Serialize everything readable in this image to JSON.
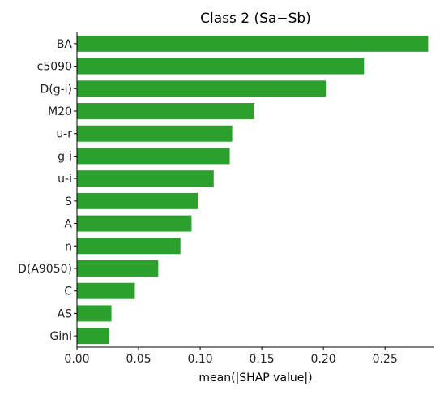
{
  "chart_data": {
    "type": "bar",
    "orientation": "horizontal",
    "title": "Class 2 (Sa−Sb)",
    "xlabel": "mean(|SHAP value|)",
    "ylabel": "",
    "categories": [
      "BA",
      "c5090",
      "D(g-i)",
      "M20",
      "u-r",
      "g-i",
      "u-i",
      "S",
      "A",
      "n",
      "D(A9050)",
      "C",
      "AS",
      "Gini"
    ],
    "values": [
      0.285,
      0.233,
      0.202,
      0.144,
      0.126,
      0.124,
      0.111,
      0.098,
      0.093,
      0.084,
      0.066,
      0.047,
      0.028,
      0.026
    ],
    "xlim": [
      0,
      0.29
    ],
    "xticks": [
      0.0,
      0.05,
      0.1,
      0.15,
      0.2,
      0.25
    ],
    "xtick_labels": [
      "0.00",
      "0.05",
      "0.10",
      "0.15",
      "0.20",
      "0.25"
    ],
    "bar_color": "#2ca02c",
    "grid": false
  }
}
